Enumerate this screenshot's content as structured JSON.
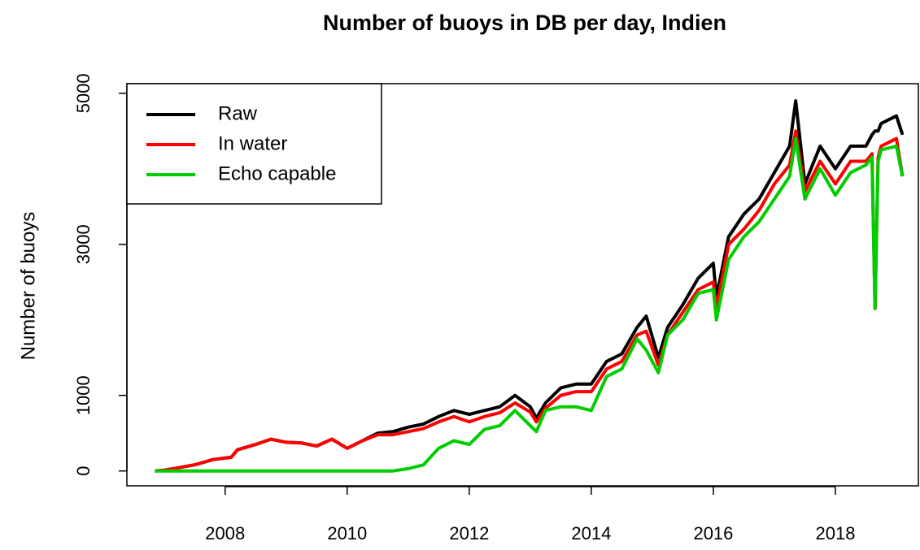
{
  "chart_data": {
    "type": "line",
    "title": "Number of buoys in DB per day, Indien",
    "ylabel": "Number of buoys",
    "x": [
      2006.85,
      2007,
      2007.5,
      2007.8,
      2008.1,
      2008.2,
      2008.5,
      2008.75,
      2009,
      2009.25,
      2009.5,
      2009.75,
      2010,
      2010.25,
      2010.5,
      2010.75,
      2011,
      2011.25,
      2011.5,
      2011.75,
      2012,
      2012.25,
      2012.5,
      2012.75,
      2013,
      2013.1,
      2013.25,
      2013.5,
      2013.75,
      2014,
      2014.25,
      2014.5,
      2014.75,
      2014.9,
      2015.1,
      2015.25,
      2015.5,
      2015.75,
      2016,
      2016.05,
      2016.25,
      2016.5,
      2016.75,
      2017,
      2017.25,
      2017.35,
      2017.5,
      2017.75,
      2018,
      2018.25,
      2018.5,
      2018.6,
      2018.65,
      2018.7,
      2018.75,
      2019,
      2019.1
    ],
    "series": [
      {
        "name": "Raw",
        "color": "#000000",
        "values": [
          0,
          10,
          80,
          150,
          180,
          280,
          350,
          420,
          380,
          370,
          330,
          420,
          300,
          400,
          500,
          520,
          580,
          620,
          720,
          800,
          750,
          800,
          850,
          1000,
          850,
          700,
          900,
          1100,
          1150,
          1150,
          1450,
          1550,
          1900,
          2050,
          1500,
          1900,
          2200,
          2550,
          2750,
          2300,
          3100,
          3400,
          3600,
          3950,
          4300,
          4900,
          3800,
          4300,
          4000,
          4300,
          4300,
          4450,
          4500,
          4500,
          4600,
          4700,
          4450
        ]
      },
      {
        "name": "In water",
        "color": "#ff0000",
        "values": [
          0,
          10,
          80,
          150,
          180,
          280,
          350,
          420,
          380,
          370,
          330,
          420,
          300,
          400,
          480,
          480,
          520,
          560,
          650,
          720,
          650,
          720,
          770,
          900,
          780,
          650,
          830,
          1000,
          1050,
          1050,
          1350,
          1450,
          1800,
          1850,
          1400,
          1800,
          2100,
          2400,
          2500,
          2150,
          3000,
          3200,
          3450,
          3800,
          4050,
          4500,
          3700,
          4100,
          3800,
          4100,
          4100,
          4200,
          2150,
          4150,
          4300,
          4400,
          3900
        ]
      },
      {
        "name": "Echo capable",
        "color": "#00cd00",
        "values": [
          0,
          0,
          0,
          0,
          0,
          0,
          0,
          0,
          0,
          0,
          0,
          0,
          0,
          0,
          0,
          0,
          30,
          80,
          300,
          400,
          350,
          550,
          600,
          800,
          600,
          520,
          800,
          850,
          850,
          800,
          1250,
          1350,
          1750,
          1600,
          1300,
          1800,
          2000,
          2350,
          2400,
          2000,
          2800,
          3100,
          3300,
          3600,
          3900,
          4400,
          3600,
          4000,
          3650,
          3950,
          4050,
          4150,
          2150,
          4100,
          4250,
          4300,
          3900
        ]
      }
    ],
    "xlim": [
      2006.39,
      2019.36
    ],
    "xticks": [
      2008,
      2010,
      2012,
      2014,
      2016,
      2018
    ],
    "ylim": [
      -197,
      5127
    ],
    "yticks": [
      0,
      1000,
      3000,
      5000
    ],
    "legend": "top-left"
  }
}
